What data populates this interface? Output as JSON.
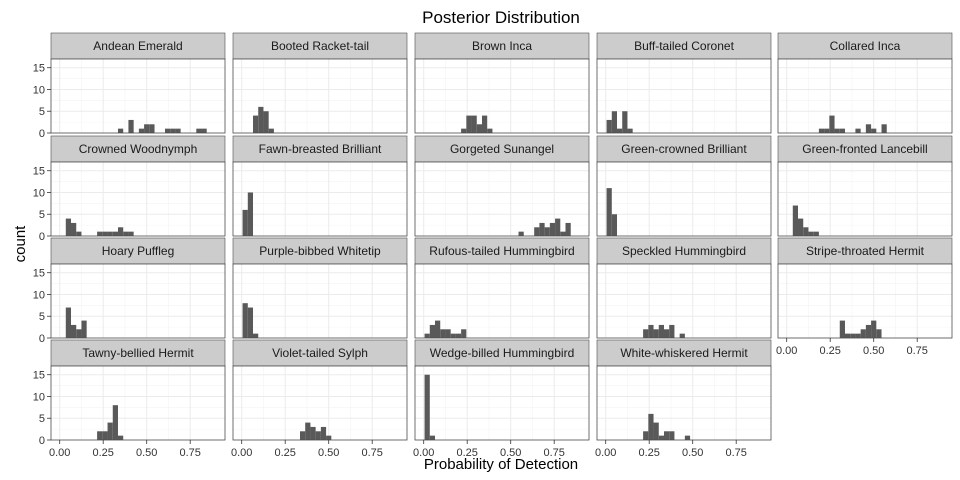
{
  "chart_data": {
    "type": "bar",
    "subtype": "faceted-histogram",
    "title": "Posterior Distribution",
    "xlabel": "Probability of Detection",
    "ylabel": "count",
    "xlim": [
      -0.05,
      0.95
    ],
    "ylim": [
      0,
      17
    ],
    "x_ticks": [
      0.0,
      0.25,
      0.5,
      0.75
    ],
    "x_tick_labels": [
      "0.00",
      "0.25",
      "0.50",
      "0.75"
    ],
    "y_ticks": [
      0,
      5,
      10,
      15
    ],
    "y_tick_labels": [
      "0",
      "5",
      "10",
      "15"
    ],
    "bin_width": 0.03,
    "grid": true,
    "ncol": 5,
    "facets": [
      {
        "name": "Andean Emerald",
        "bins": [
          [
            0.35,
            1
          ],
          [
            0.41,
            3
          ],
          [
            0.47,
            1
          ],
          [
            0.5,
            2
          ],
          [
            0.53,
            2
          ],
          [
            0.62,
            1
          ],
          [
            0.65,
            1
          ],
          [
            0.68,
            1
          ],
          [
            0.8,
            1
          ],
          [
            0.83,
            1
          ]
        ]
      },
      {
        "name": "Booted Racket-tail",
        "bins": [
          [
            0.08,
            4
          ],
          [
            0.11,
            6
          ],
          [
            0.14,
            5
          ],
          [
            0.17,
            1
          ]
        ]
      },
      {
        "name": "Brown Inca",
        "bins": [
          [
            0.23,
            1
          ],
          [
            0.26,
            4
          ],
          [
            0.29,
            4
          ],
          [
            0.32,
            2
          ],
          [
            0.35,
            4
          ],
          [
            0.38,
            1
          ]
        ]
      },
      {
        "name": "Buff-tailed Coronet",
        "bins": [
          [
            0.02,
            3
          ],
          [
            0.05,
            5
          ],
          [
            0.08,
            1
          ],
          [
            0.11,
            5
          ],
          [
            0.14,
            1
          ]
        ]
      },
      {
        "name": "Collared Inca",
        "bins": [
          [
            0.2,
            1
          ],
          [
            0.23,
            1
          ],
          [
            0.26,
            4
          ],
          [
            0.29,
            1
          ],
          [
            0.32,
            1
          ],
          [
            0.41,
            1
          ],
          [
            0.47,
            2
          ],
          [
            0.5,
            1
          ],
          [
            0.56,
            2
          ]
        ]
      },
      {
        "name": "Crowned Woodnymph",
        "bins": [
          [
            0.05,
            4
          ],
          [
            0.08,
            3
          ],
          [
            0.11,
            1
          ],
          [
            0.23,
            1
          ],
          [
            0.26,
            1
          ],
          [
            0.29,
            1
          ],
          [
            0.32,
            1
          ],
          [
            0.35,
            2
          ],
          [
            0.38,
            1
          ],
          [
            0.41,
            1
          ]
        ]
      },
      {
        "name": "Fawn-breasted Brilliant",
        "bins": [
          [
            0.02,
            6
          ],
          [
            0.05,
            10
          ]
        ]
      },
      {
        "name": "Gorgeted Sunangel",
        "bins": [
          [
            0.56,
            1
          ],
          [
            0.65,
            2
          ],
          [
            0.68,
            3
          ],
          [
            0.71,
            2
          ],
          [
            0.74,
            3
          ],
          [
            0.77,
            4
          ],
          [
            0.8,
            1
          ],
          [
            0.83,
            3
          ]
        ]
      },
      {
        "name": "Green-crowned Brilliant",
        "bins": [
          [
            0.02,
            11
          ],
          [
            0.05,
            5
          ]
        ]
      },
      {
        "name": "Green-fronted Lancebill",
        "bins": [
          [
            0.05,
            7
          ],
          [
            0.08,
            4
          ],
          [
            0.11,
            2
          ],
          [
            0.14,
            1
          ],
          [
            0.17,
            1
          ]
        ]
      },
      {
        "name": "Hoary Puffleg",
        "bins": [
          [
            0.05,
            7
          ],
          [
            0.08,
            3
          ],
          [
            0.11,
            2
          ],
          [
            0.14,
            4
          ]
        ]
      },
      {
        "name": "Purple-bibbed Whitetip",
        "bins": [
          [
            0.02,
            8
          ],
          [
            0.05,
            7
          ],
          [
            0.08,
            1
          ]
        ]
      },
      {
        "name": "Rufous-tailed Hummingbird",
        "bins": [
          [
            0.02,
            1
          ],
          [
            0.05,
            3
          ],
          [
            0.08,
            4
          ],
          [
            0.11,
            2
          ],
          [
            0.14,
            2
          ],
          [
            0.17,
            1
          ],
          [
            0.2,
            1
          ],
          [
            0.23,
            2
          ]
        ]
      },
      {
        "name": "Speckled Hummingbird",
        "bins": [
          [
            0.23,
            2
          ],
          [
            0.26,
            3
          ],
          [
            0.29,
            2
          ],
          [
            0.32,
            3
          ],
          [
            0.35,
            2
          ],
          [
            0.38,
            3
          ],
          [
            0.44,
            1
          ]
        ]
      },
      {
        "name": "Stripe-throated Hermit",
        "bins": [
          [
            0.32,
            4
          ],
          [
            0.35,
            1
          ],
          [
            0.38,
            1
          ],
          [
            0.41,
            1
          ],
          [
            0.44,
            2
          ],
          [
            0.47,
            3
          ],
          [
            0.5,
            4
          ],
          [
            0.53,
            2
          ]
        ]
      },
      {
        "name": "Tawny-bellied Hermit",
        "bins": [
          [
            0.23,
            2
          ],
          [
            0.26,
            2
          ],
          [
            0.29,
            4
          ],
          [
            0.32,
            8
          ],
          [
            0.35,
            1
          ]
        ]
      },
      {
        "name": "Violet-tailed Sylph",
        "bins": [
          [
            0.35,
            2
          ],
          [
            0.38,
            4
          ],
          [
            0.41,
            3
          ],
          [
            0.44,
            2
          ],
          [
            0.47,
            3
          ],
          [
            0.5,
            1
          ]
        ]
      },
      {
        "name": "Wedge-billed Hummingbird",
        "bins": [
          [
            0.02,
            15
          ],
          [
            0.05,
            1
          ]
        ]
      },
      {
        "name": "White-whiskered Hermit",
        "bins": [
          [
            0.23,
            2
          ],
          [
            0.26,
            6
          ],
          [
            0.29,
            4
          ],
          [
            0.32,
            1
          ],
          [
            0.35,
            2
          ],
          [
            0.38,
            2
          ],
          [
            0.47,
            1
          ]
        ]
      }
    ]
  }
}
